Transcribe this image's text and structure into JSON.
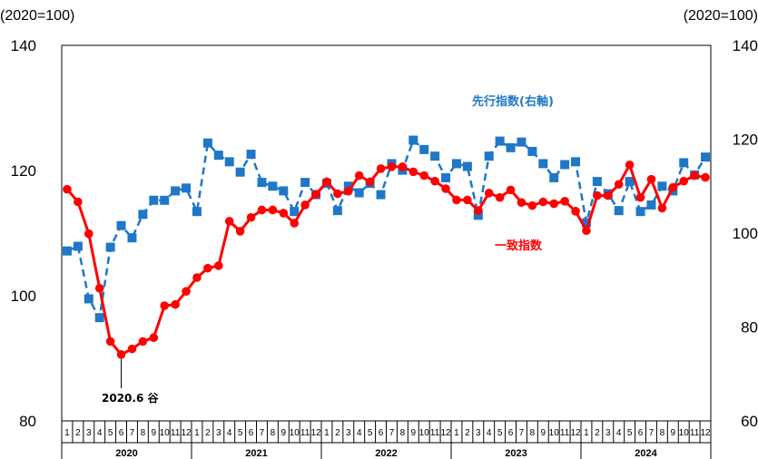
{
  "chart_data": {
    "type": "line",
    "left_axis": {
      "unit": "(2020=100)",
      "range": [
        80,
        140
      ],
      "ticks": [
        "80",
        "100",
        "120",
        "140"
      ]
    },
    "right_axis": {
      "unit": "(2020=100)",
      "range": [
        60,
        140
      ],
      "ticks": [
        "60",
        "80",
        "100",
        "120",
        "140"
      ]
    },
    "years": [
      "2020",
      "2021",
      "2022",
      "2023",
      "2024"
    ],
    "months": [
      "1",
      "2",
      "3",
      "4",
      "5",
      "6",
      "7",
      "8",
      "9",
      "10",
      "11",
      "12"
    ],
    "series": [
      {
        "name": "一致指数",
        "axis": "left",
        "color": "#ff0000",
        "style": "solid",
        "marker": "circle",
        "values": [
          117.0,
          115.0,
          109.9,
          101.2,
          92.7,
          90.6,
          91.5,
          92.7,
          93.3,
          98.4,
          98.6,
          100.7,
          102.9,
          104.4,
          104.8,
          111.9,
          110.3,
          112.5,
          113.7,
          113.7,
          113.2,
          111.6,
          114.5,
          116.2,
          118.2,
          116.3,
          116.7,
          119.2,
          118.2,
          120.3,
          120.6,
          120.6,
          119.8,
          119.2,
          118.3,
          117.1,
          115.3,
          115.3,
          113.6,
          116.4,
          115.7,
          116.9,
          114.9,
          114.4,
          115.0,
          114.7,
          115.1,
          113.5,
          110.4,
          116.0,
          116.0,
          117.8,
          120.9,
          115.7,
          118.6,
          114.0,
          117.3,
          118.3,
          119.2,
          118.9
        ]
      },
      {
        "name": "先行指数(右軸)",
        "axis": "right",
        "color": "#1f77c8",
        "style": "dashed",
        "marker": "square",
        "values": [
          96.2,
          97.2,
          86.0,
          82.0,
          97.0,
          101.6,
          99.0,
          104.0,
          107.0,
          107.0,
          109.0,
          109.6,
          104.6,
          119.2,
          116.6,
          115.2,
          113.0,
          116.8,
          110.8,
          110.0,
          109.0,
          104.6,
          110.8,
          108.2,
          110.6,
          104.8,
          110.0,
          108.6,
          110.6,
          108.2,
          114.8,
          113.4,
          119.8,
          117.8,
          116.4,
          111.8,
          114.8,
          114.2,
          103.8,
          116.4,
          119.6,
          118.2,
          119.4,
          117.4,
          114.8,
          111.8,
          114.6,
          115.2,
          102.2,
          111.0,
          108.4,
          104.8,
          111.0,
          104.6,
          106.0,
          110.0,
          109.0,
          115.0,
          112.4,
          116.2
        ]
      }
    ],
    "annotations": [
      {
        "text": "2020.6 谷",
        "series": 0,
        "index": 5
      }
    ],
    "grid": false,
    "legend": "inline"
  }
}
